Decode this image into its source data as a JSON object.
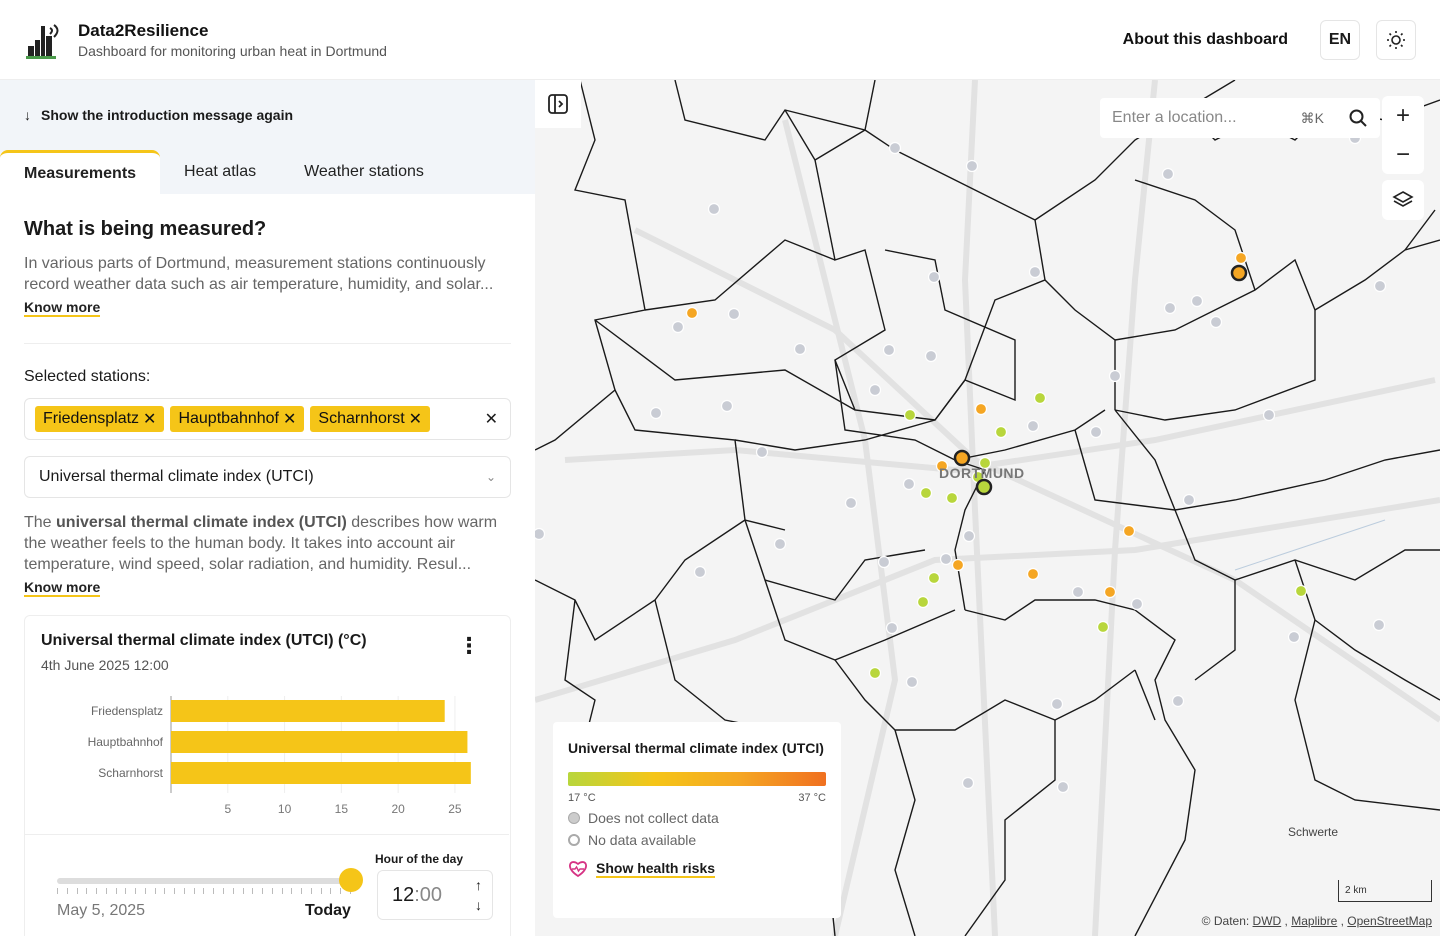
{
  "header": {
    "title": "Data2Resilience",
    "subtitle": "Dashboard for monitoring urban heat in Dortmund",
    "about": "About this dashboard",
    "lang": "EN"
  },
  "sidebar": {
    "intro": "Show the introduction message again",
    "tabs": [
      "Measurements",
      "Heat atlas",
      "Weather stations"
    ],
    "heading": "What is being measured?",
    "intro_text": "In various parts of Dortmund, measurement stations continuously record weather data such as air temperature, humidity, and solar...",
    "know_more": "Know more",
    "selected_label": "Selected stations:",
    "stations": [
      "Friedensplatz",
      "Hauptbahnhof",
      "Scharnhorst"
    ],
    "metric": "Universal thermal climate index (UTCI)",
    "desc_pre": "The ",
    "desc_bold": "universal thermal climate index (UTCI)",
    "desc_post": " describes how warm the weather feels to the human body. It takes into account air temperature, wind speed, solar radiation, and humidity. Resul...",
    "card_title": "Universal thermal climate index (UTCI) (°C)",
    "card_date": "4th June 2025 12:00",
    "date_start": "May 5, 2025",
    "date_end": "Today",
    "hour_label": "Hour of the day",
    "hour_h": "12",
    "hour_m": ":00"
  },
  "chart_data": {
    "type": "bar",
    "orientation": "horizontal",
    "categories": [
      "Friedensplatz",
      "Hauptbahnhof",
      "Scharnhorst"
    ],
    "values": [
      24.1,
      26.1,
      26.4
    ],
    "xticks": [
      5,
      10,
      15,
      20,
      25
    ],
    "xlim": [
      0,
      28
    ],
    "title": "Universal thermal climate index (UTCI) (°C)",
    "color": "#f5c518"
  },
  "map": {
    "search_placeholder": "Enter a location...",
    "search_kbd": "⌘K",
    "city": "DORTMUND",
    "town": "Schwerte",
    "legend_title": "Universal thermal climate index (UTCI)",
    "legend_min": "17 °C",
    "legend_max": "37 °C",
    "no_collect": "Does not collect data",
    "no_data": "No data available",
    "health": "Show health risks",
    "scale": "2 km",
    "attrib_prefix": "© Daten: ",
    "attrib_dwd": "DWD",
    "attrib_maplibre": "Maplibre",
    "attrib_osm": "OpenStreetMap",
    "sep": " , "
  },
  "colors": {
    "accent": "#f5c518",
    "grey_station": "#c9ccd4",
    "orange": "#f5a623",
    "lime": "#b8d63c"
  }
}
